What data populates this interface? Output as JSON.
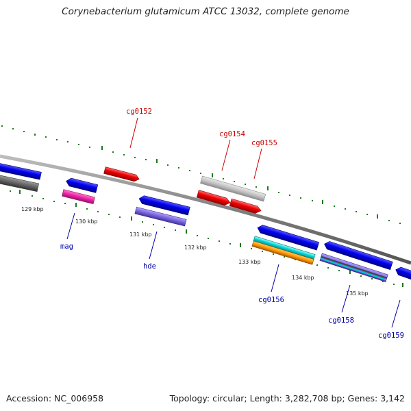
{
  "title": "Corynebacterium glutamicum ATCC 13032, complete genome",
  "footer": {
    "accession": "Accession: NC_006958",
    "topology": "Topology: circular; Length: 3,282,708 bp; Genes: 3,142"
  },
  "scale": {
    "labels": [
      "129 kbp",
      "130 kbp",
      "131 kbp",
      "132 kbp",
      "133 kbp",
      "134 kbp",
      "135 kbp"
    ]
  },
  "colors": {
    "forward_label": "#cc0000",
    "reverse_label": "#0000aa",
    "backbone": "#808080",
    "tick": "#1a7a1a"
  },
  "genes": {
    "forward": [
      {
        "name": "cg0152",
        "color": "#ff0000"
      },
      {
        "name": "cg0154",
        "color": "#ff0000"
      },
      {
        "name": "cg0155",
        "color": "#ff0000"
      },
      {
        "name": "",
        "color": "#c0c0c0"
      }
    ],
    "reverse": [
      {
        "name": "mag",
        "color": "#0000ff"
      },
      {
        "name": "hde",
        "color": "#0000ff"
      },
      {
        "name": "cg0156",
        "color": "#0000ff"
      },
      {
        "name": "cg0158",
        "color": "#0000ff"
      },
      {
        "name": "cg0159",
        "color": "#0000ff"
      }
    ]
  }
}
